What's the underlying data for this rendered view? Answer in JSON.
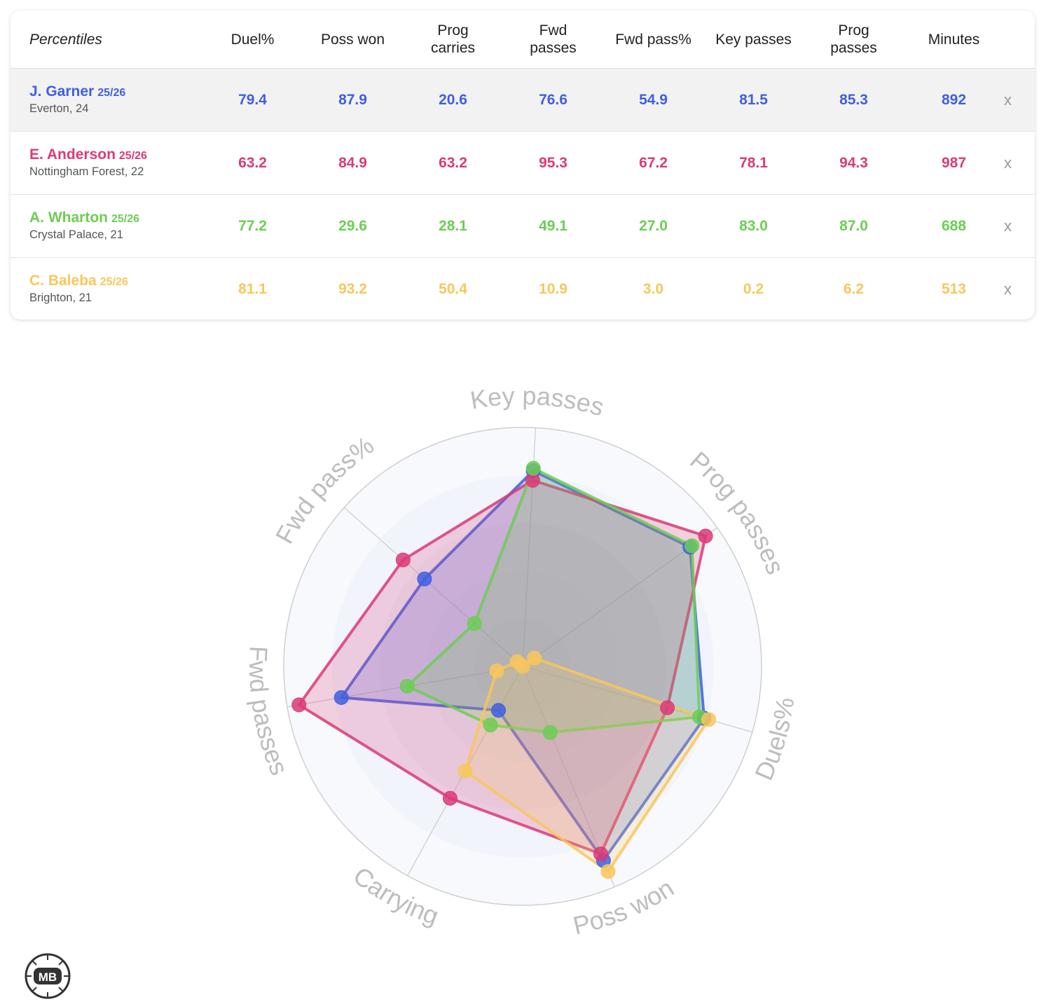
{
  "table": {
    "header_label": "Percentiles",
    "columns": [
      "Duel%",
      "Poss won",
      "Prog\ncarries",
      "Fwd\npasses",
      "Fwd pass%",
      "Key passes",
      "Prog\npasses",
      "Minutes"
    ],
    "remove_label": "x",
    "rows": [
      {
        "name": "J. Garner",
        "season": "25/26",
        "team": "Everton, 24",
        "color": "#3f5fe0",
        "values": [
          "79.4",
          "87.9",
          "20.6",
          "76.6",
          "54.9",
          "81.5",
          "85.3",
          "892"
        ],
        "selected": true
      },
      {
        "name": "E. Anderson",
        "season": "25/26",
        "team": "Nottingham Forest, 22",
        "color": "#db3a78",
        "values": [
          "63.2",
          "84.9",
          "63.2",
          "95.3",
          "67.2",
          "78.1",
          "94.3",
          "987"
        ],
        "selected": false
      },
      {
        "name": "A. Wharton",
        "season": "25/26",
        "team": "Crystal Palace, 21",
        "color": "#6dcd54",
        "values": [
          "77.2",
          "29.6",
          "28.1",
          "49.1",
          "27.0",
          "83.0",
          "87.0",
          "688"
        ],
        "selected": false
      },
      {
        "name": "C. Baleba",
        "season": "25/26",
        "team": "Brighton, 21",
        "color": "#f8c75c",
        "values": [
          "81.1",
          "93.2",
          "50.4",
          "10.9",
          "3.0",
          "0.2",
          "6.2",
          "513"
        ],
        "selected": false
      }
    ]
  },
  "chart_data": {
    "type": "radar",
    "axes": [
      "Key passes",
      "Prog passes",
      "Duels%",
      "Poss won",
      "Carrying",
      "Fwd passes",
      "Fwd pass%"
    ],
    "range": [
      0,
      100
    ],
    "rings": 5,
    "series": [
      {
        "name": "J. Garner",
        "color": "#3f5fe0",
        "values": [
          82,
          86,
          79,
          88,
          21,
          77,
          55
        ]
      },
      {
        "name": "E. Anderson",
        "color": "#db3a78",
        "values": [
          78,
          94,
          63,
          85,
          63,
          95,
          67
        ]
      },
      {
        "name": "A. Wharton",
        "color": "#6dcd54",
        "values": [
          83,
          87,
          77,
          30,
          28,
          49,
          27
        ]
      },
      {
        "name": "C. Baleba",
        "color": "#f8c75c",
        "values": [
          0,
          6,
          81,
          93,
          50,
          11,
          3
        ]
      }
    ]
  },
  "logo_text": "MB"
}
